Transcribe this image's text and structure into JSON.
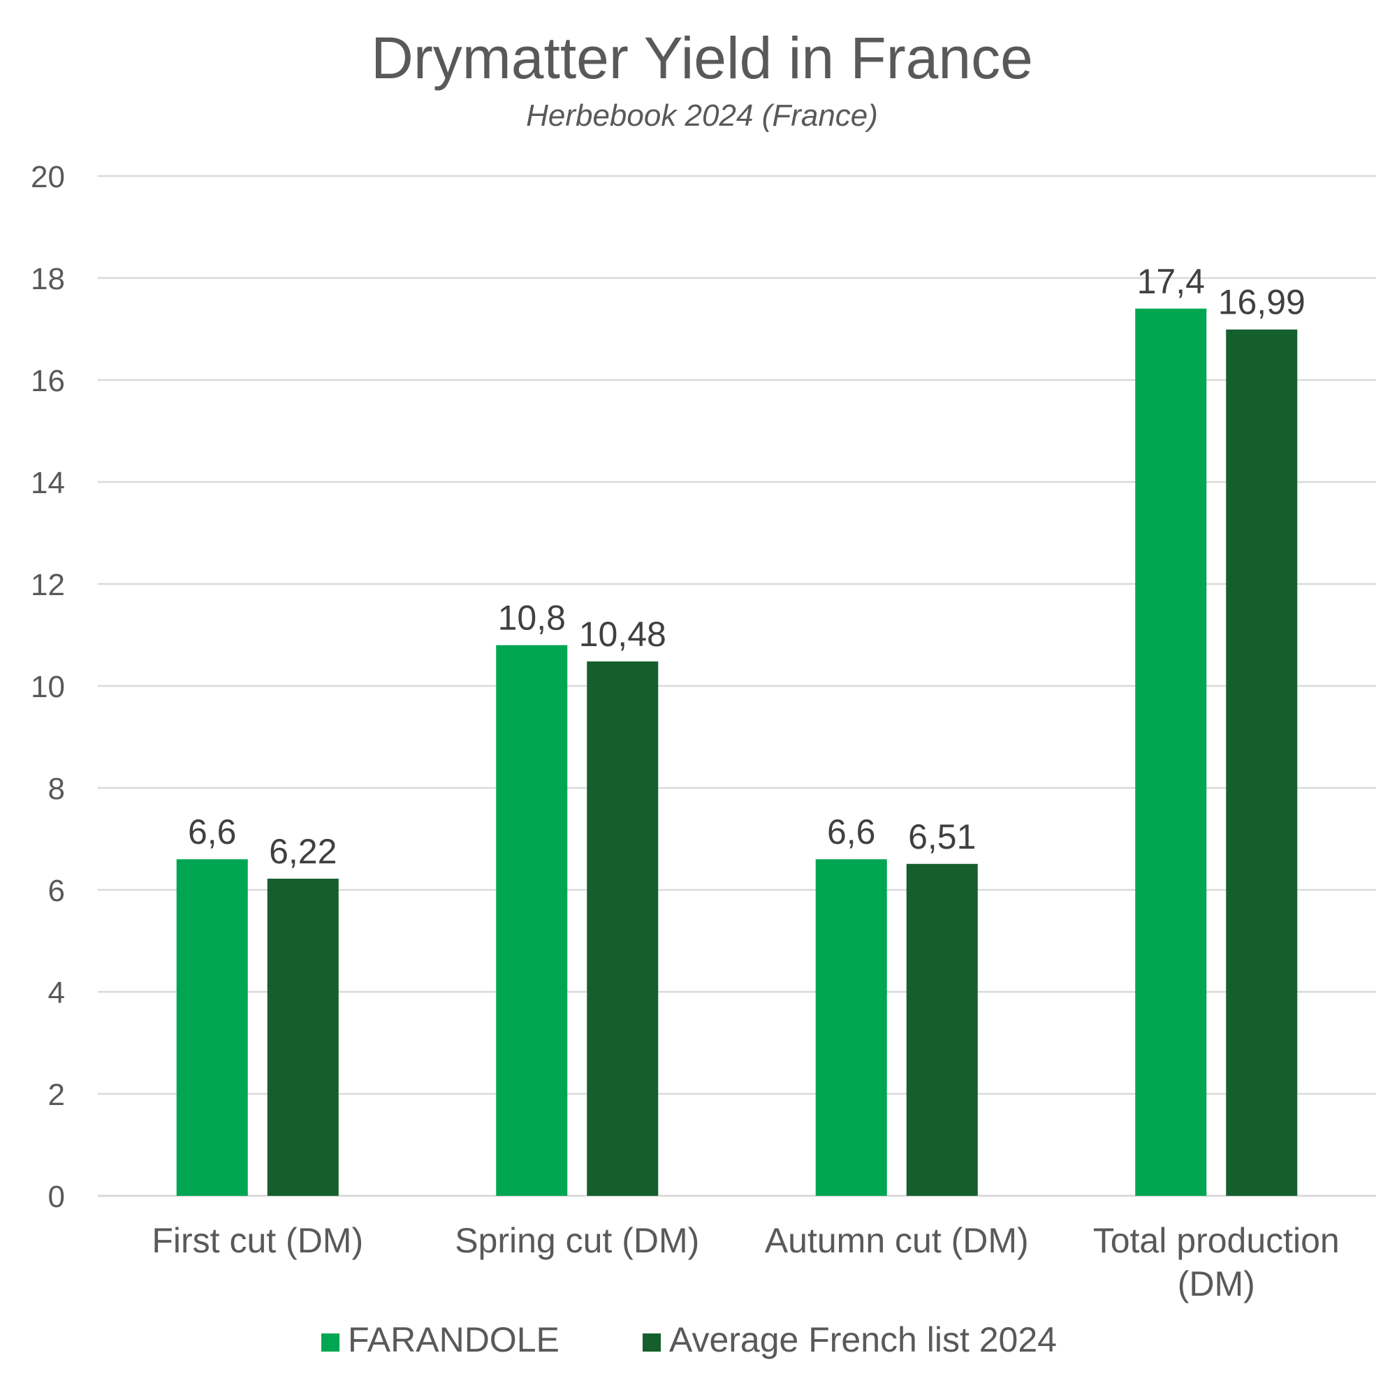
{
  "chart_data": {
    "type": "bar",
    "title": "Drymatter Yield in France",
    "subtitle": "Herbebook 2024 (France)",
    "xlabel": "",
    "ylabel": "",
    "ylim": [
      0,
      20
    ],
    "yticks": [
      0,
      2,
      4,
      6,
      8,
      10,
      12,
      14,
      16,
      18,
      20
    ],
    "grid": true,
    "legend_position": "bottom",
    "categories": [
      [
        "First cut (DM)"
      ],
      [
        "Spring cut (DM)"
      ],
      [
        "Autumn cut (DM)"
      ],
      [
        "Total production",
        "(DM)"
      ]
    ],
    "series": [
      {
        "name": "FARANDOLE",
        "color": "#00a651",
        "values": [
          6.6,
          10.8,
          6.6,
          17.4
        ],
        "labels": [
          "6,6",
          "10,8",
          "6,6",
          "17,4"
        ]
      },
      {
        "name": "Average French list 2024",
        "color": "#155f2d",
        "values": [
          6.22,
          10.48,
          6.51,
          16.99
        ],
        "labels": [
          "6,22",
          "10,48",
          "6,51",
          "16,99"
        ]
      }
    ]
  }
}
